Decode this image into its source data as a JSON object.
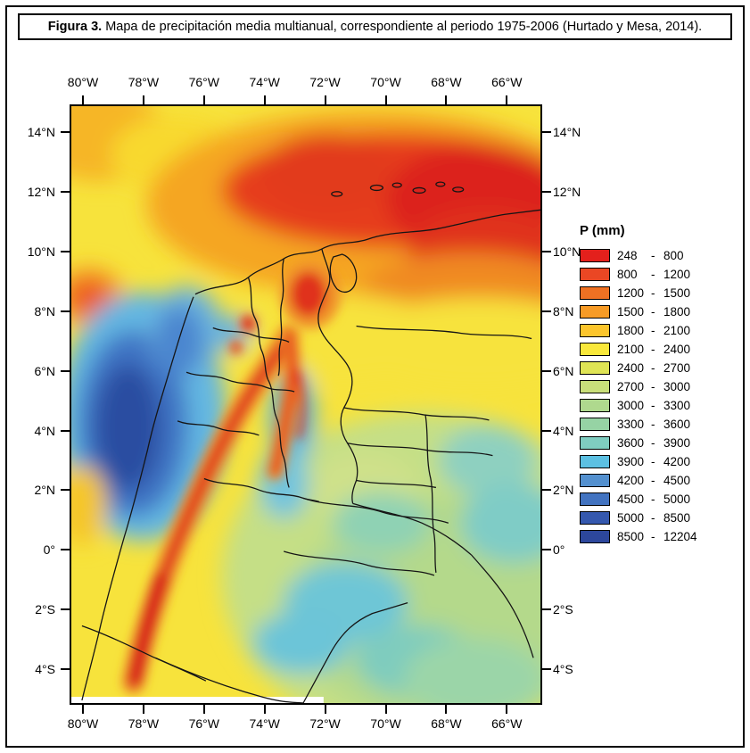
{
  "figure": {
    "caption_prefix": "Figura 3.",
    "caption_text": "Mapa de precipitación media multianual, correspondiente al periodo 1975-2006 (Hurtado y Mesa, 2014)."
  },
  "map": {
    "axis": {
      "lon_ticks": [
        "80°W",
        "78°W",
        "76°W",
        "74°W",
        "72°W",
        "70°W",
        "68°W",
        "66°W"
      ],
      "lat_ticks": [
        "14°N",
        "12°N",
        "10°N",
        "8°N",
        "6°N",
        "4°N",
        "2°N",
        "0°",
        "2°S",
        "4°S"
      ]
    },
    "legend": {
      "title": "P (mm)",
      "separator": "-",
      "items": [
        {
          "from": "248",
          "to": "800",
          "color": "#e3201c"
        },
        {
          "from": "800",
          "to": "1200",
          "color": "#ea4724"
        },
        {
          "from": "1200",
          "to": "1500",
          "color": "#ef7123"
        },
        {
          "from": "1500",
          "to": "1800",
          "color": "#f79b26"
        },
        {
          "from": "1800",
          "to": "2100",
          "color": "#fcc52c"
        },
        {
          "from": "2100",
          "to": "2400",
          "color": "#f9e83b"
        },
        {
          "from": "2400",
          "to": "2700",
          "color": "#dfe455"
        },
        {
          "from": "2700",
          "to": "3000",
          "color": "#c9df7a"
        },
        {
          "from": "3000",
          "to": "3300",
          "color": "#afd98e"
        },
        {
          "from": "3300",
          "to": "3600",
          "color": "#96d3a4"
        },
        {
          "from": "3600",
          "to": "3900",
          "color": "#7fcdc0"
        },
        {
          "from": "3900",
          "to": "4200",
          "color": "#5cc0e2"
        },
        {
          "from": "4200",
          "to": "4500",
          "color": "#5390cf"
        },
        {
          "from": "4500",
          "to": "5000",
          "color": "#4273c0"
        },
        {
          "from": "5000",
          "to": "8500",
          "color": "#3558ae"
        },
        {
          "from": "8500",
          "to": "12204",
          "color": "#2d479c"
        }
      ]
    }
  }
}
